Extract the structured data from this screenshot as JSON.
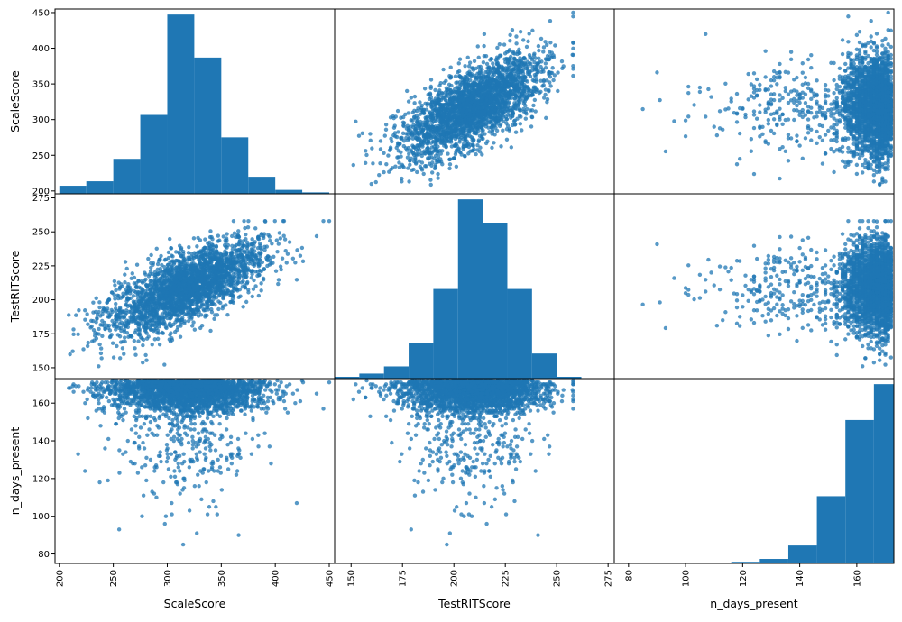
{
  "chart_data": {
    "type": "scatter",
    "kind": "scatter-matrix",
    "variables": [
      "ScaleScore",
      "TestRITScore",
      "n_days_present"
    ],
    "axis_labels": {
      "ScaleScore": "ScaleScore",
      "TestRITScore": "TestRITScore",
      "n_days_present": "n_days_present"
    },
    "ranges": {
      "ScaleScore": [
        196,
        455
      ],
      "TestRITScore": [
        142,
        278
      ],
      "n_days_present": [
        75,
        173
      ]
    },
    "ticks": {
      "ScaleScore": [
        200,
        250,
        300,
        350,
        400,
        450
      ],
      "TestRITScore": [
        150,
        175,
        200,
        225,
        250,
        275
      ],
      "n_days_present": [
        80,
        100,
        120,
        140,
        160
      ]
    },
    "tick_labels": {
      "ScaleScore": [
        "200",
        "250",
        "300",
        "350",
        "400",
        "450"
      ],
      "TestRITScore": [
        "150",
        "175",
        "200",
        "225",
        "250",
        "275"
      ],
      "n_days_present": [
        "80",
        "100",
        "120",
        "140",
        "160"
      ]
    },
    "scatter_color": "#1f77b4",
    "histograms": [
      {
        "variable": "ScaleScore",
        "bins": [
          [
            200,
            225
          ],
          [
            225,
            250
          ],
          [
            250,
            275
          ],
          [
            275,
            300
          ],
          [
            300,
            325
          ],
          [
            325,
            350
          ],
          [
            350,
            375
          ],
          [
            375,
            400
          ],
          [
            400,
            425
          ],
          [
            425,
            450
          ]
        ],
        "relative_heights": [
          0.045,
          0.07,
          0.195,
          0.44,
          1.0,
          0.76,
          0.315,
          0.095,
          0.022,
          0.008
        ]
      },
      {
        "variable": "TestRITScore",
        "bins": [
          [
            142,
            154
          ],
          [
            154,
            166
          ],
          [
            166,
            178
          ],
          [
            178,
            190
          ],
          [
            190,
            202
          ],
          [
            202,
            214
          ],
          [
            214,
            226
          ],
          [
            226,
            238
          ],
          [
            238,
            250
          ],
          [
            250,
            262
          ]
        ],
        "relative_heights": [
          0.01,
          0.028,
          0.068,
          0.2,
          0.5,
          1.0,
          0.87,
          0.5,
          0.14,
          0.01
        ]
      },
      {
        "variable": "n_days_present",
        "bins": [
          [
            76,
            86
          ],
          [
            86,
            96
          ],
          [
            96,
            106
          ],
          [
            106,
            116
          ],
          [
            116,
            126
          ],
          [
            126,
            136
          ],
          [
            136,
            146
          ],
          [
            146,
            156
          ],
          [
            156,
            166
          ],
          [
            166,
            173
          ]
        ],
        "relative_heights": [
          0.0,
          0.0,
          0.003,
          0.005,
          0.009,
          0.025,
          0.1,
          0.375,
          0.8,
          1.0
        ]
      }
    ],
    "scatter_summary": {
      "ScaleScore_mean": 318,
      "ScaleScore_sd": 36,
      "TestRITScore_mean": 209,
      "TestRITScore_sd": 17,
      "n_days_present_typical_min": 140,
      "n_days_present_max": 172,
      "corr_ScaleScore_TestRITScore": 0.68
    }
  }
}
